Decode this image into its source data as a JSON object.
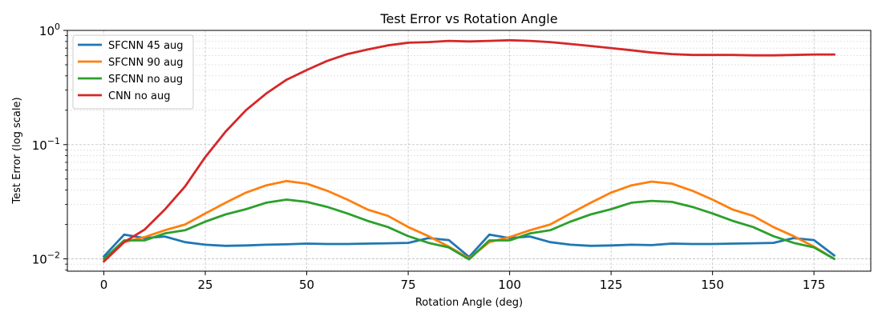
{
  "chart_data": {
    "type": "line",
    "title": "Test Error vs Rotation Angle",
    "xlabel": "Rotation Angle (deg)",
    "ylabel": "Test Error (log scale)",
    "xlim": [
      -9,
      189
    ],
    "ylim": [
      0.0078,
      1.0
    ],
    "yscale": "log",
    "xticks": [
      0,
      25,
      50,
      75,
      100,
      125,
      150,
      175
    ],
    "yticks": [
      {
        "value": 0.01,
        "base": "10",
        "exp": "−2"
      },
      {
        "value": 0.1,
        "base": "10",
        "exp": "−1"
      },
      {
        "value": 1.0,
        "base": "10",
        "exp": "0"
      }
    ],
    "grid": "both (major and minor)",
    "legend_position": "top-left",
    "x": [
      0,
      5,
      10,
      15,
      20,
      25,
      30,
      35,
      40,
      45,
      50,
      55,
      60,
      65,
      70,
      75,
      80,
      85,
      90,
      95,
      100,
      105,
      110,
      115,
      120,
      125,
      130,
      135,
      140,
      145,
      150,
      155,
      160,
      165,
      170,
      175,
      180
    ],
    "series": [
      {
        "name": "SFCNN 45 aug",
        "color": "#1f77b4",
        "values": [
          0.0105,
          0.0163,
          0.0152,
          0.0157,
          0.014,
          0.0133,
          0.013,
          0.0131,
          0.0133,
          0.0134,
          0.0136,
          0.0135,
          0.0135,
          0.0136,
          0.0137,
          0.0138,
          0.0152,
          0.0146,
          0.0104,
          0.0163,
          0.0152,
          0.0157,
          0.014,
          0.0133,
          0.013,
          0.0131,
          0.0133,
          0.0132,
          0.0136,
          0.0135,
          0.0135,
          0.0136,
          0.0137,
          0.0138,
          0.0152,
          0.0146,
          0.0107
        ]
      },
      {
        "name": "SFCNN 90 aug",
        "color": "#ff7f0e",
        "values": [
          0.01,
          0.014,
          0.0155,
          0.0178,
          0.02,
          0.025,
          0.031,
          0.038,
          0.044,
          0.048,
          0.0455,
          0.0395,
          0.033,
          0.027,
          0.0238,
          0.019,
          0.0158,
          0.0128,
          0.0101,
          0.014,
          0.0155,
          0.0178,
          0.02,
          0.025,
          0.031,
          0.038,
          0.044,
          0.0475,
          0.0455,
          0.0395,
          0.033,
          0.027,
          0.0238,
          0.019,
          0.0158,
          0.0128,
          0.01
        ]
      },
      {
        "name": "SFCNN no aug",
        "color": "#2ca02c",
        "values": [
          0.01,
          0.0145,
          0.0145,
          0.0167,
          0.0178,
          0.0212,
          0.0245,
          0.0272,
          0.031,
          0.033,
          0.0315,
          0.0285,
          0.025,
          0.0215,
          0.019,
          0.0158,
          0.0138,
          0.0126,
          0.0099,
          0.0145,
          0.0145,
          0.0167,
          0.0178,
          0.0212,
          0.0245,
          0.0272,
          0.031,
          0.0322,
          0.0315,
          0.0285,
          0.025,
          0.0215,
          0.019,
          0.0158,
          0.0138,
          0.0126,
          0.01
        ]
      },
      {
        "name": "CNN no aug",
        "color": "#d62728",
        "values": [
          0.0095,
          0.014,
          0.018,
          0.027,
          0.043,
          0.078,
          0.13,
          0.2,
          0.28,
          0.37,
          0.45,
          0.54,
          0.62,
          0.68,
          0.74,
          0.78,
          0.79,
          0.81,
          0.8,
          0.81,
          0.82,
          0.81,
          0.79,
          0.76,
          0.73,
          0.7,
          0.67,
          0.64,
          0.62,
          0.61,
          0.61,
          0.61,
          0.605,
          0.605,
          0.61,
          0.615,
          0.615
        ]
      }
    ]
  }
}
